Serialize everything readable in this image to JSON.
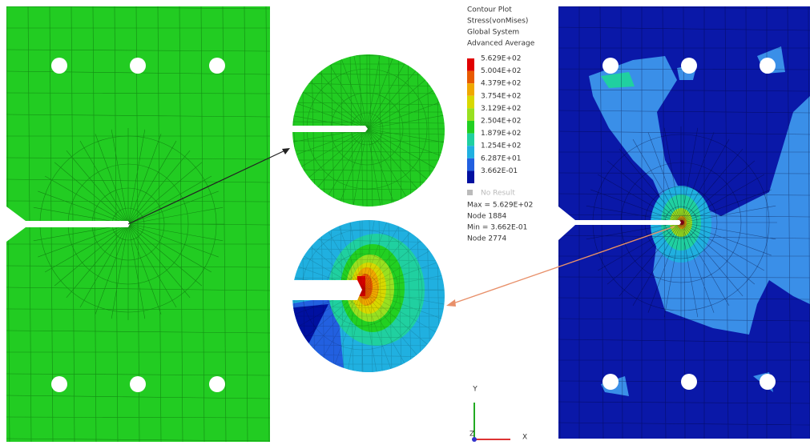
{
  "legend": {
    "title": [
      "Contour Plot",
      "Stress(vonMises)",
      "Global System",
      "Advanced Average"
    ],
    "entries": [
      {
        "label": "5.629E+02",
        "color": "#e00000"
      },
      {
        "label": "5.004E+02",
        "color": "#e85a00"
      },
      {
        "label": "4.379E+02",
        "color": "#f0a800"
      },
      {
        "label": "3.754E+02",
        "color": "#d8d800"
      },
      {
        "label": "3.129E+02",
        "color": "#98e020"
      },
      {
        "label": "2.504E+02",
        "color": "#22d022"
      },
      {
        "label": "1.879E+02",
        "color": "#20d0a0"
      },
      {
        "label": "1.254E+02",
        "color": "#20b0e0"
      },
      {
        "label": "6.287E+01",
        "color": "#2260e0"
      },
      {
        "label": "3.662E-01",
        "color": "#0010a0"
      }
    ],
    "no_result": "No Result",
    "stats": [
      "Max = 5.629E+02",
      "Node 1884",
      "Min = 3.662E-01",
      "Node 2774"
    ]
  },
  "axes": {
    "y": "Y",
    "x": "X",
    "z": "Z"
  }
}
